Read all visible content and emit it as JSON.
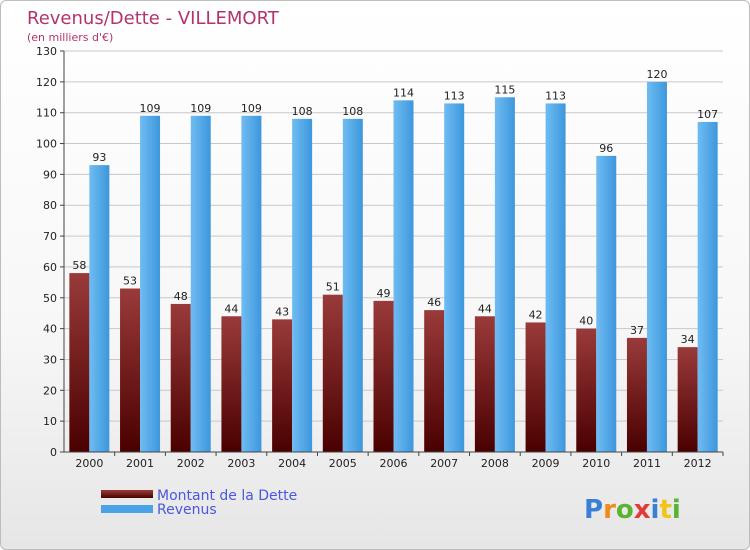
{
  "chart_data": {
    "type": "bar",
    "title": "Revenus/Dette - VILLEMORT",
    "subtitle": "(en milliers d'€)",
    "categories": [
      "2000",
      "2001",
      "2002",
      "2003",
      "2004",
      "2005",
      "2006",
      "2007",
      "2008",
      "2009",
      "2010",
      "2011",
      "2012"
    ],
    "series": [
      {
        "name": "Montant de la Dette",
        "values": [
          58,
          53,
          48,
          44,
          43,
          51,
          49,
          46,
          44,
          42,
          40,
          37,
          34
        ]
      },
      {
        "name": "Revenus",
        "values": [
          93,
          109,
          109,
          109,
          108,
          108,
          114,
          113,
          115,
          113,
          96,
          120,
          107
        ]
      }
    ],
    "ylim": [
      0,
      130
    ],
    "yticks": [
      0,
      10,
      20,
      30,
      40,
      50,
      60,
      70,
      80,
      90,
      100,
      110,
      120,
      130
    ],
    "grid": true,
    "legend_position": "bottom-left"
  },
  "colors": {
    "debt_top": "#9a3a3a",
    "debt_bottom": "#4a0000",
    "revenue_top": "#66b3ee",
    "revenue_bottom": "#1f7ac7",
    "title": "#b2336e",
    "legend_text": "#4a57e0"
  },
  "logo": {
    "text": "Proxiti"
  }
}
